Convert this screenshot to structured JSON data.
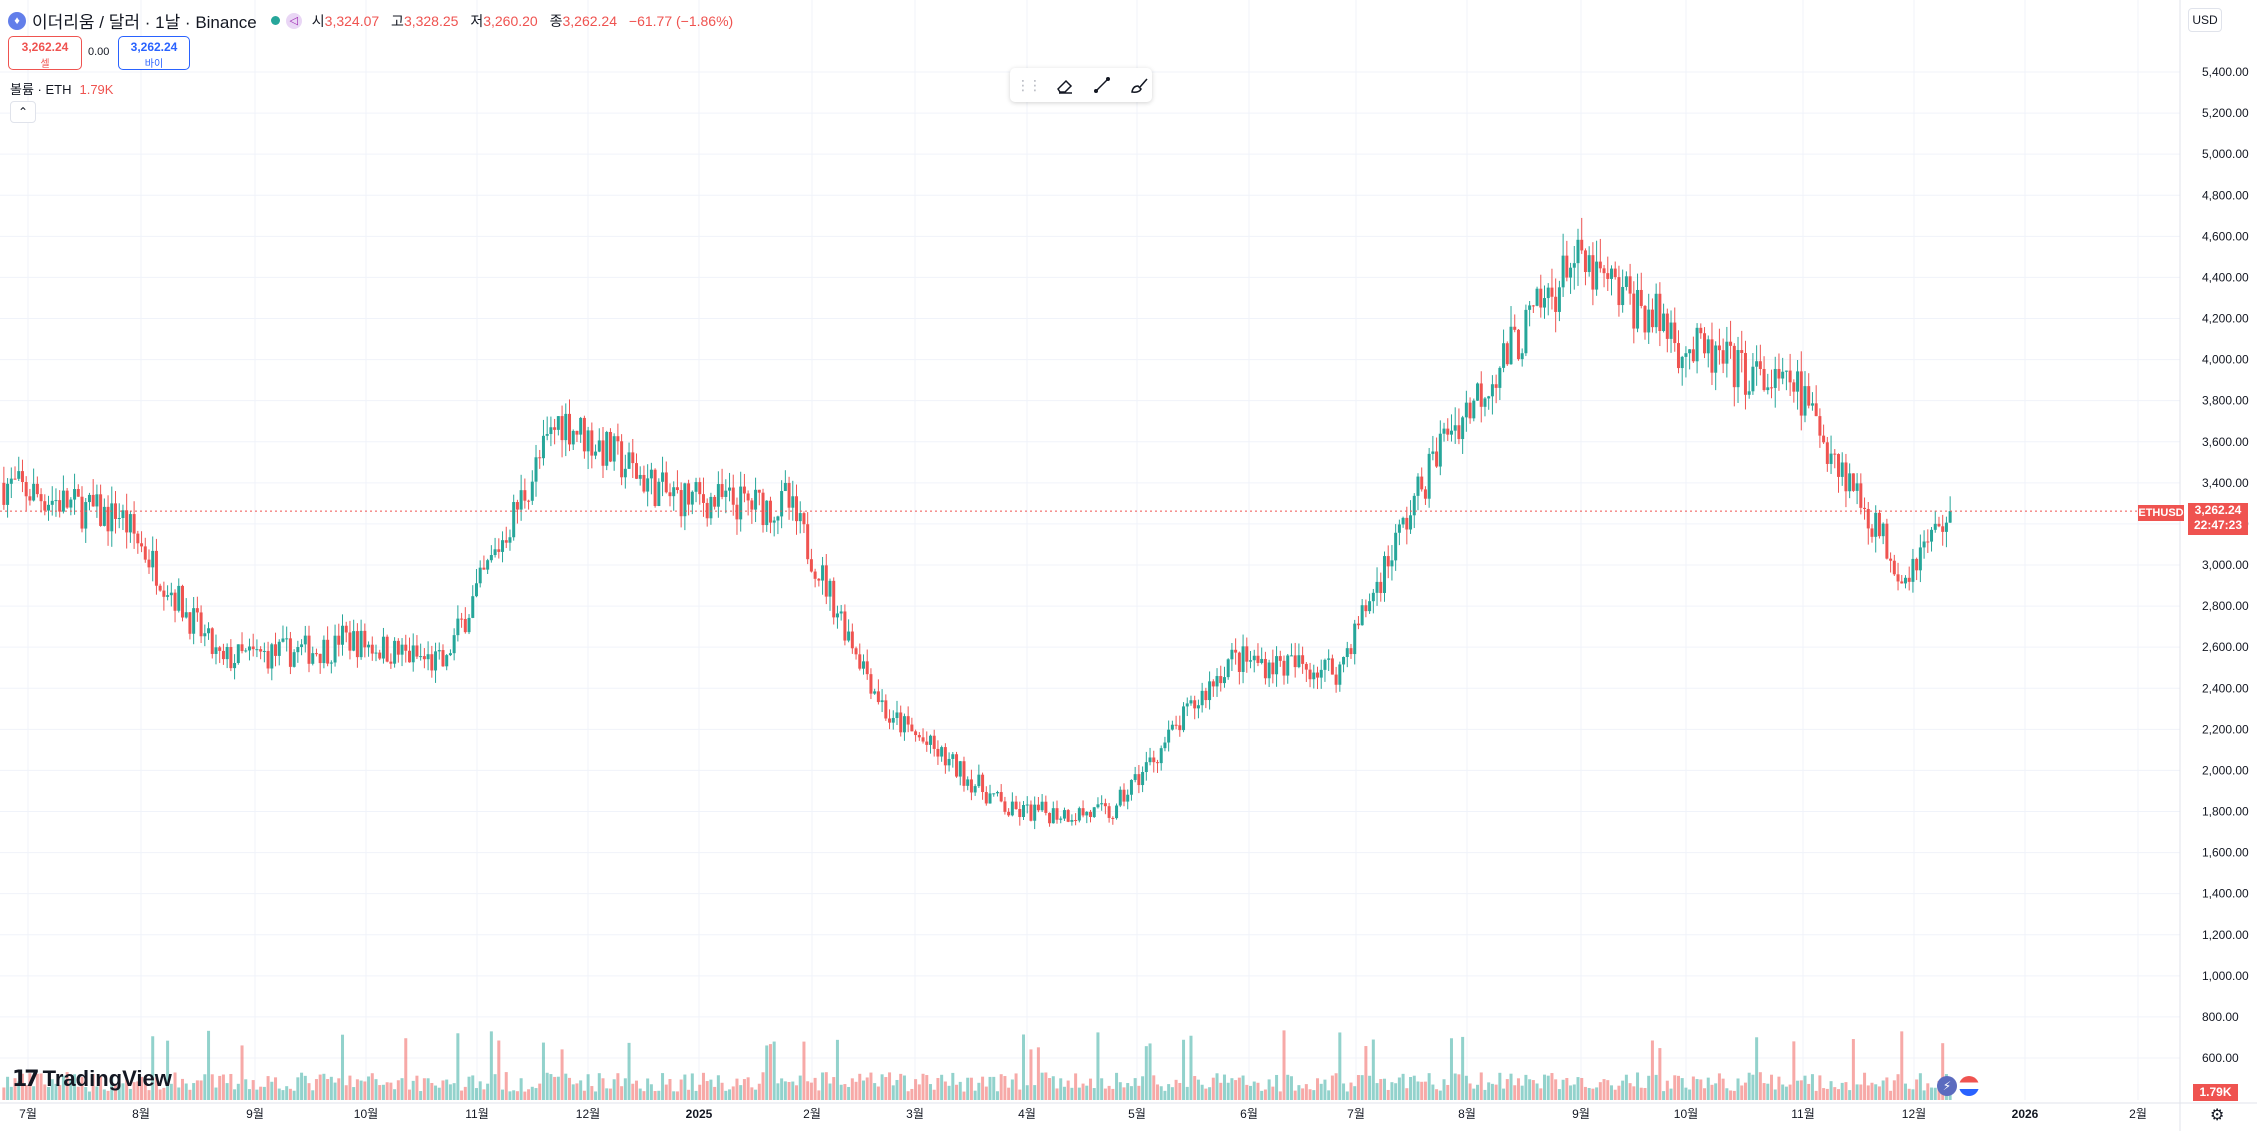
{
  "header": {
    "coin_icon": "ethereum-icon",
    "symbol_title": "이더리움 / 달러 · 1날 · Binance",
    "ohlc": {
      "open_label": "시",
      "open": "3,324.07",
      "high_label": "고",
      "high": "3,328.25",
      "low_label": "저",
      "low": "3,260.20",
      "close_label": "종",
      "close": "3,262.24",
      "change": "−61.77 (−1.86%)"
    }
  },
  "trade": {
    "sell_price": "3,262.24",
    "sell_label": "셀",
    "spread": "0.00",
    "buy_price": "3,262.24",
    "buy_label": "바이"
  },
  "volume_legend": {
    "label": "볼륨 · ETH",
    "value": "1.79K"
  },
  "currency_button": "USD",
  "price_tag": {
    "symbol": "ETHUSD",
    "price": "3,262.24",
    "countdown": "22:47:23"
  },
  "volume_tag": "1.79K",
  "brand": "TradingView",
  "colors": {
    "up": "#26a69a",
    "down": "#ef5350",
    "grid": "#f0f3fa"
  },
  "chart_data": {
    "type": "candlestick",
    "y_unit": "USD",
    "ylim": [
      0,
      5600
    ],
    "y_ticks": [
      "600.00",
      "800.00",
      "1,000.00",
      "1,200.00",
      "1,400.00",
      "1,600.00",
      "1,800.00",
      "2,000.00",
      "2,200.00",
      "2,400.00",
      "2,600.00",
      "2,800.00",
      "3,000.00",
      "3,200.00",
      "3,400.00",
      "3,600.00",
      "3,800.00",
      "4,000.00",
      "4,200.00",
      "4,400.00",
      "4,600.00",
      "4,800.00",
      "5,000.00",
      "5,200.00",
      "5,400.00"
    ],
    "x_ticks": [
      "7월",
      "8월",
      "9월",
      "10월",
      "11월",
      "12월",
      "2025",
      "2월",
      "3월",
      "4월",
      "5월",
      "6월",
      "7월",
      "8월",
      "9월",
      "10월",
      "11월",
      "12월",
      "2026",
      "2월"
    ],
    "grid": true,
    "current_price": 3262.24,
    "monthly_closes": [
      {
        "month": "2024-07",
        "close": 3230
      },
      {
        "month": "2024-08",
        "close": 2510
      },
      {
        "month": "2024-09",
        "close": 2600
      },
      {
        "month": "2024-10",
        "close": 2510
      },
      {
        "month": "2024-11",
        "close": 3700
      },
      {
        "month": "2024-12",
        "close": 3330
      },
      {
        "month": "2025-01",
        "close": 3280
      },
      {
        "month": "2025-02",
        "close": 2210
      },
      {
        "month": "2025-03",
        "close": 1820
      },
      {
        "month": "2025-04",
        "close": 1790
      },
      {
        "month": "2025-05",
        "close": 2530
      },
      {
        "month": "2025-06",
        "close": 2490
      },
      {
        "month": "2025-07",
        "close": 3700
      },
      {
        "month": "2025-08",
        "close": 4400
      },
      {
        "month": "2025-09",
        "close": 4140
      },
      {
        "month": "2025-10",
        "close": 3850
      },
      {
        "month": "2025-11",
        "close": 3000
      },
      {
        "month": "2025-12",
        "close": 3262
      }
    ]
  }
}
